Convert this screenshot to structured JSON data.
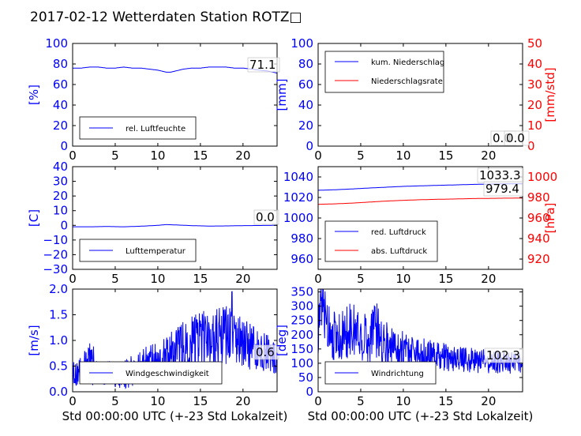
{
  "figure_title": "2017-02-12 Wetterdaten Station ROTZ□",
  "colors": {
    "blue": "#0000ff",
    "red": "#ff0000",
    "black": "#000000"
  },
  "chart_data": [
    {
      "type": "line",
      "panel": "humidity",
      "ylabel": "[%]",
      "ylim": [
        0,
        100
      ],
      "yticks": [
        "0",
        "20",
        "40",
        "60",
        "80",
        "100"
      ],
      "xlim": [
        0,
        24
      ],
      "xticks": [
        "0",
        "5",
        "10",
        "15",
        "20"
      ],
      "grid": false,
      "legend_position": "lower-left",
      "last_value_label": "71.1",
      "series": [
        {
          "name": "rel. Luftfeuchte",
          "color": "#0000ff",
          "x": [
            0,
            1,
            2,
            3,
            4,
            5,
            6,
            7,
            8,
            9,
            10,
            10.5,
            11,
            11.5,
            12,
            13,
            14,
            15,
            16,
            17,
            18,
            19,
            20,
            21,
            22,
            23,
            24
          ],
          "y": [
            76,
            76,
            77,
            77,
            76,
            76,
            77,
            76,
            76,
            75,
            74,
            73,
            72,
            72,
            73,
            75,
            76,
            76,
            77,
            77,
            77,
            76,
            76,
            75,
            74,
            73,
            71.1
          ]
        }
      ]
    },
    {
      "type": "line",
      "panel": "precipitation",
      "ylabel": "[mm]",
      "ylim": [
        0,
        100
      ],
      "yticks": [
        "0",
        "20",
        "40",
        "60",
        "80",
        "100"
      ],
      "ylabel_right": "[mm/std]",
      "ylim_right": [
        0,
        50
      ],
      "yticks_right": [
        "0",
        "10",
        "20",
        "30",
        "40",
        "50"
      ],
      "xlim": [
        0,
        24
      ],
      "xticks": [
        "0",
        "5",
        "10",
        "15",
        "20"
      ],
      "grid": false,
      "legend_position": "top-left",
      "last_value_labels": [
        "0.0",
        "0.0"
      ],
      "series": [
        {
          "name": "kum. Niederschlag",
          "color": "#0000ff",
          "axis": "left",
          "x": [
            0,
            24
          ],
          "y": [
            0,
            0
          ]
        },
        {
          "name": "Niederschlagsrate",
          "color": "#ff0000",
          "axis": "right",
          "x": [
            0,
            24
          ],
          "y": [
            0,
            0
          ]
        }
      ]
    },
    {
      "type": "line",
      "panel": "temperature",
      "ylabel": "[C]",
      "ylim": [
        -30,
        40
      ],
      "yticks": [
        "−30",
        "−20",
        "−10",
        "0",
        "10",
        "20",
        "30",
        "40"
      ],
      "xlim": [
        0,
        24
      ],
      "xticks": [
        "0",
        "5",
        "10",
        "15",
        "20"
      ],
      "grid": false,
      "legend_position": "lower-left",
      "last_value_label": "0.0",
      "series": [
        {
          "name": "Lufttemperatur",
          "color": "#0000ff",
          "x": [
            0,
            2,
            4,
            6,
            8,
            10,
            11,
            12,
            14,
            16,
            18,
            20,
            22,
            24
          ],
          "y": [
            -1,
            -1,
            -0.8,
            -1,
            -0.6,
            0,
            0.5,
            0.3,
            -0.2,
            -0.5,
            -0.4,
            -0.2,
            -0.1,
            0
          ]
        }
      ]
    },
    {
      "type": "line",
      "panel": "pressure",
      "ylim": [
        950,
        1050
      ],
      "yticks": [
        "960",
        "980",
        "1000",
        "1020",
        "1040"
      ],
      "ylabel_right": "[hPa]",
      "ylim_right": [
        910,
        1010
      ],
      "yticks_right": [
        "920",
        "940",
        "960",
        "980",
        "1000"
      ],
      "xlim": [
        0,
        24
      ],
      "xticks": [
        "0",
        "5",
        "10",
        "15",
        "20"
      ],
      "grid": false,
      "legend_position": "lower-left",
      "last_value_labels": [
        "1033.3",
        "979.4"
      ],
      "series": [
        {
          "name": "red. Luftdruck",
          "color": "#0000ff",
          "axis": "left",
          "x": [
            0,
            2,
            4,
            6,
            8,
            10,
            12,
            14,
            16,
            18,
            20,
            22,
            24
          ],
          "y": [
            1027,
            1027.5,
            1028.3,
            1029.2,
            1030,
            1030.8,
            1031.3,
            1031.8,
            1032.2,
            1032.7,
            1033,
            1033.2,
            1033.3
          ]
        },
        {
          "name": "abs. Luftdruck",
          "color": "#ff0000",
          "axis": "right",
          "x": [
            0,
            2,
            4,
            6,
            8,
            10,
            12,
            14,
            16,
            18,
            20,
            22,
            24
          ],
          "y": [
            973.3,
            973.8,
            974.5,
            975.5,
            976.5,
            977.2,
            977.8,
            978.2,
            978.5,
            978.9,
            979.1,
            979.3,
            979.4
          ]
        }
      ]
    },
    {
      "type": "line",
      "panel": "wind_speed",
      "ylabel": "[m/s]",
      "ylim": [
        0,
        2.0
      ],
      "yticks": [
        "0.0",
        "0.5",
        "1.0",
        "1.5",
        "2.0"
      ],
      "xlim": [
        0,
        24
      ],
      "xticks": [
        "0",
        "5",
        "10",
        "15",
        "20"
      ],
      "xlabel": "Std 00:00:00 UTC (+-23 Std Lokalzeit)",
      "grid": false,
      "legend_position": "lower-left",
      "last_value_label": "0.6",
      "series": [
        {
          "name": "Windgeschwindigkeit",
          "color": "#0000ff",
          "x": [
            0,
            1,
            2,
            3,
            4,
            5,
            6,
            7,
            8,
            9,
            10,
            11,
            12,
            13,
            14,
            15,
            16,
            17,
            18,
            18.7,
            19,
            20,
            21,
            22,
            23,
            24
          ],
          "y": [
            0.35,
            0.4,
            0.5,
            0.45,
            0.35,
            0.3,
            0.35,
            0.4,
            0.45,
            0.55,
            0.55,
            0.65,
            0.8,
            0.85,
            0.95,
            1.0,
            1.0,
            1.05,
            1.05,
            1.2,
            1.0,
            0.95,
            0.85,
            0.8,
            0.75,
            0.6
          ],
          "variability": [
            0.25,
            0.3,
            0.45,
            0.35,
            0.3,
            0.25,
            0.3,
            0.3,
            0.35,
            0.4,
            0.4,
            0.45,
            0.55,
            0.55,
            0.6,
            0.6,
            0.55,
            0.6,
            0.6,
            0.75,
            0.55,
            0.5,
            0.45,
            0.4,
            0.35,
            0.3
          ],
          "peak": {
            "x": 18.7,
            "y": 1.95
          }
        }
      ]
    },
    {
      "type": "line",
      "panel": "wind_direction",
      "ylabel": "[deg]",
      "ylim": [
        0,
        360
      ],
      "yticks": [
        "0",
        "50",
        "100",
        "150",
        "200",
        "250",
        "300",
        "350"
      ],
      "xlim": [
        0,
        24
      ],
      "xticks": [
        "0",
        "5",
        "10",
        "15",
        "20"
      ],
      "xlabel": "Std 00:00:00 UTC (+-23 Std Lokalzeit)",
      "grid": false,
      "legend_position": "lower-left",
      "last_value_label": "102.3",
      "series": [
        {
          "name": "Windrichtung",
          "color": "#0000ff",
          "x": [
            0,
            0.5,
            1,
            2,
            3,
            4,
            5,
            6,
            6.5,
            7,
            8,
            9,
            10,
            11,
            12,
            13,
            14,
            15,
            16,
            17,
            18,
            19,
            20,
            21,
            22,
            23,
            24
          ],
          "y": [
            220,
            300,
            250,
            190,
            200,
            220,
            200,
            180,
            250,
            200,
            170,
            160,
            150,
            145,
            140,
            130,
            125,
            120,
            115,
            115,
            110,
            110,
            105,
            105,
            100,
            100,
            102.3
          ],
          "variability": [
            90,
            110,
            100,
            90,
            90,
            100,
            90,
            90,
            110,
            100,
            80,
            70,
            70,
            60,
            60,
            55,
            50,
            50,
            45,
            45,
            45,
            45,
            40,
            40,
            40,
            40,
            35
          ]
        }
      ]
    }
  ]
}
